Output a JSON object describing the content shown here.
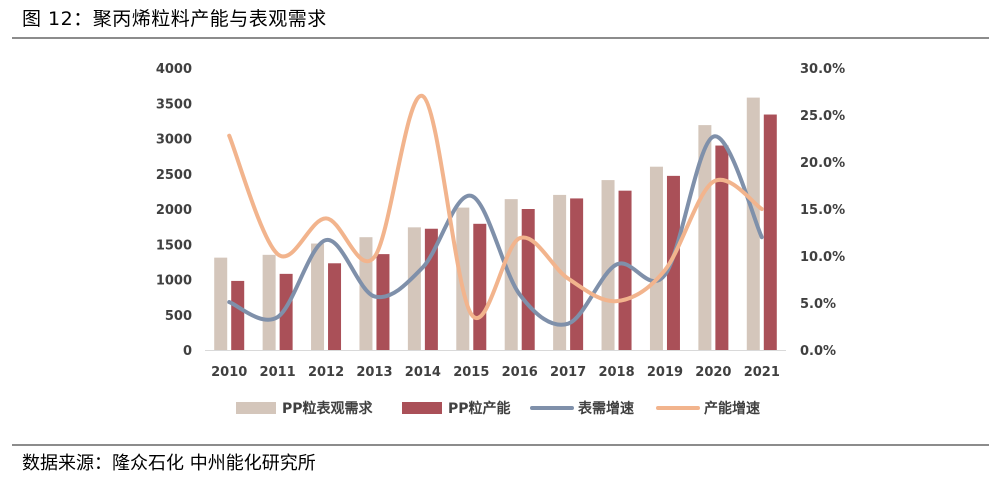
{
  "title": "图 12：聚丙烯粒料产能与表观需求",
  "source": "数据来源：隆众石化 中州能化研究所",
  "colors": {
    "demand_bar": "#d4c6bb",
    "capacity_bar": "#aa5058",
    "demand_growth": "#7f90aa",
    "capacity_growth": "#f2b48d",
    "rule": "#8c8c8c"
  },
  "chart_data": {
    "type": "bar",
    "categories": [
      "2010",
      "2011",
      "2012",
      "2013",
      "2014",
      "2015",
      "2016",
      "2017",
      "2018",
      "2019",
      "2020",
      "2021"
    ],
    "series": [
      {
        "name": "PP粒表观需求",
        "type": "bar",
        "axis": "left",
        "values": [
          1310,
          1350,
          1510,
          1600,
          1740,
          2020,
          2140,
          2200,
          2410,
          2600,
          3190,
          3580
        ]
      },
      {
        "name": "PP粒产能",
        "type": "bar",
        "axis": "left",
        "values": [
          980,
          1080,
          1230,
          1360,
          1720,
          1790,
          2000,
          2150,
          2260,
          2470,
          2900,
          3340
        ]
      },
      {
        "name": "表需增速",
        "type": "line",
        "axis": "right",
        "values": [
          5.1,
          3.5,
          11.7,
          5.7,
          8.8,
          16.4,
          5.9,
          2.8,
          9.1,
          8.0,
          22.7,
          12.0
        ]
      },
      {
        "name": "产能增速",
        "type": "line",
        "axis": "right",
        "values": [
          22.8,
          10.2,
          14.0,
          9.9,
          27.0,
          3.8,
          11.9,
          7.6,
          5.2,
          8.5,
          17.9,
          15.0
        ]
      }
    ],
    "y_left": {
      "min": 0,
      "max": 4000,
      "ticks": [
        "0",
        "500",
        "1000",
        "1500",
        "2000",
        "2500",
        "3000",
        "3500",
        "4000"
      ]
    },
    "y_right": {
      "min": 0,
      "max": 30,
      "ticks": [
        "0.0%",
        "5.0%",
        "10.0%",
        "15.0%",
        "20.0%",
        "25.0%",
        "30.0%"
      ]
    },
    "legend_position": "bottom",
    "grid": false
  }
}
